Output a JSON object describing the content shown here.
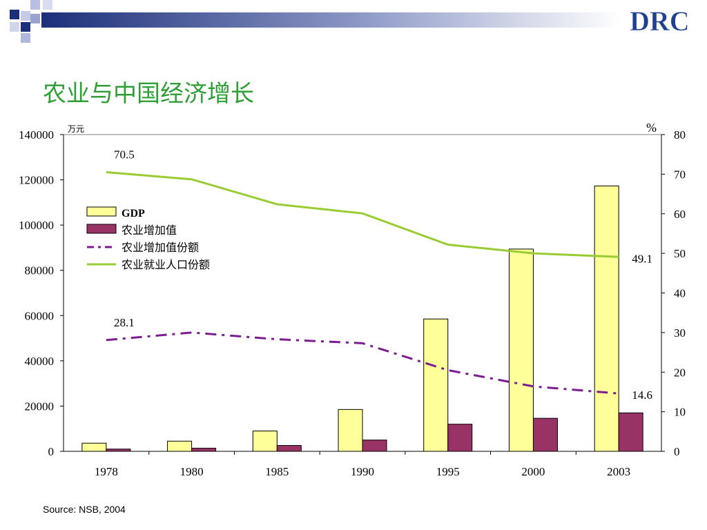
{
  "slide": {
    "title": "农业与中国经济增长",
    "logo_text": "DRC",
    "source": "Source: NSB, 2004"
  },
  "colors": {
    "title": "#2e9e35",
    "gdp_fill": "#ffff99",
    "agri_fill": "#993366",
    "agri_share_line": "#7b1b8f",
    "employment_line": "#99cc33",
    "logo": "#1f3f8f"
  },
  "chart_data": {
    "type": "bar",
    "categories": [
      "1978",
      "1980",
      "1985",
      "1990",
      "1995",
      "2000",
      "2003"
    ],
    "y_left": {
      "unit": "万元",
      "ylim": [
        0,
        140000
      ],
      "ticks": [
        0,
        20000,
        40000,
        60000,
        80000,
        100000,
        120000,
        140000
      ]
    },
    "y_right": {
      "unit": "%",
      "ylim": [
        0,
        80
      ],
      "ticks": [
        0,
        10,
        20,
        30,
        40,
        50,
        60,
        70,
        80
      ]
    },
    "legend_position": "upper-left",
    "series": [
      {
        "name": "GDP",
        "kind": "bar",
        "axis": "left",
        "values": [
          3600,
          4500,
          9000,
          18500,
          58500,
          89400,
          117300
        ]
      },
      {
        "name": "农业增加值",
        "kind": "bar",
        "axis": "left",
        "values": [
          1000,
          1400,
          2600,
          5000,
          12000,
          14600,
          17000
        ]
      },
      {
        "name": "农业增加值份额",
        "kind": "line",
        "style": "dashdot",
        "axis": "right",
        "values": [
          28.1,
          30.0,
          28.3,
          27.3,
          20.5,
          16.4,
          14.6
        ]
      },
      {
        "name": "农业就业人口份额",
        "kind": "line",
        "style": "solid",
        "axis": "right",
        "values": [
          70.5,
          68.7,
          62.4,
          60.1,
          52.2,
          50.0,
          49.1
        ]
      }
    ],
    "annotations": [
      {
        "text": "70.5",
        "series": 3,
        "index": 0
      },
      {
        "text": "49.1",
        "series": 3,
        "index": 6
      },
      {
        "text": "28.1",
        "series": 2,
        "index": 0
      },
      {
        "text": "14.6",
        "series": 2,
        "index": 6
      }
    ]
  }
}
